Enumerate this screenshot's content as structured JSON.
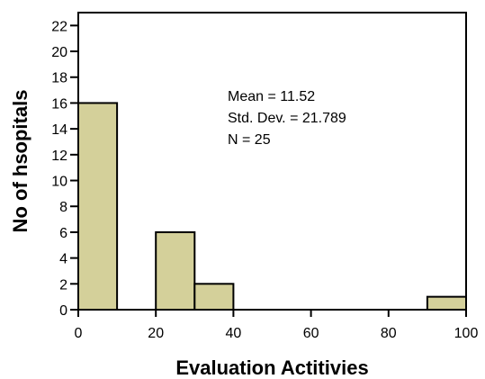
{
  "chart_data": {
    "type": "bar",
    "subtype": "histogram",
    "xlabel": "Evaluation Actitivies",
    "ylabel": "No of hsopitals",
    "xlim": [
      0,
      100
    ],
    "ylim": [
      0,
      23
    ],
    "x_ticks": [
      0,
      20,
      40,
      60,
      80,
      100
    ],
    "y_ticks": [
      0,
      2,
      4,
      6,
      8,
      10,
      12,
      14,
      16,
      18,
      20,
      22
    ],
    "bins": [
      {
        "start": 0,
        "end": 10,
        "count": 16
      },
      {
        "start": 10,
        "end": 20,
        "count": 0
      },
      {
        "start": 20,
        "end": 30,
        "count": 6
      },
      {
        "start": 30,
        "end": 40,
        "count": 2
      },
      {
        "start": 40,
        "end": 50,
        "count": 0
      },
      {
        "start": 50,
        "end": 60,
        "count": 0
      },
      {
        "start": 60,
        "end": 70,
        "count": 0
      },
      {
        "start": 70,
        "end": 80,
        "count": 0
      },
      {
        "start": 80,
        "end": 90,
        "count": 0
      },
      {
        "start": 90,
        "end": 100,
        "count": 1
      }
    ],
    "annotations": [
      "Mean = 11.52",
      "Std. Dev. = 21.789",
      "N = 25"
    ],
    "bar_color": "#d4d09a",
    "grid": false
  }
}
